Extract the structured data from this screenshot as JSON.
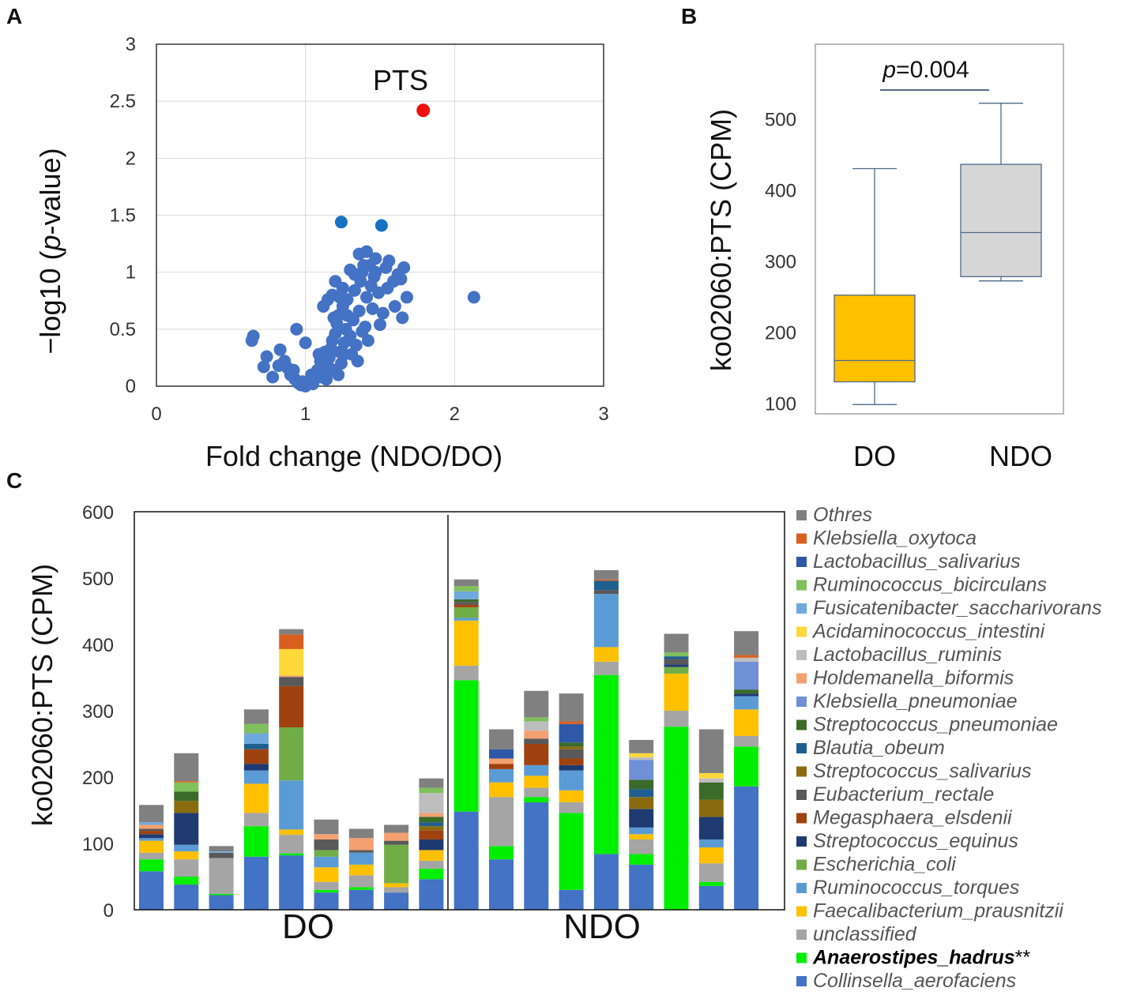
{
  "panels": {
    "a": "A",
    "b": "B",
    "c": "C"
  },
  "chart_data": [
    {
      "type": "scatter",
      "panel": "A",
      "xlabel": "Fold change (NDO/DO)",
      "ylabel_parts": [
        "−log10 (",
        "p",
        "-value)"
      ],
      "xlim": [
        0,
        3
      ],
      "ylim": [
        0,
        3
      ],
      "xticks": [
        "0",
        "1",
        "2",
        "3"
      ],
      "yticks": [
        "0",
        "0.5",
        "1",
        "1.5",
        "2",
        "2.5",
        "3"
      ],
      "grid": true,
      "annotation": "PTS",
      "highlight_color": "#ee1111",
      "secondary_color": "#1672c2",
      "point_color": "#4472c4",
      "highlight": [
        {
          "x": 1.79,
          "y": 2.42
        }
      ],
      "secondary": [
        {
          "x": 1.24,
          "y": 1.44
        },
        {
          "x": 1.51,
          "y": 1.41
        }
      ],
      "points": [
        [
          0.65,
          0.44
        ],
        [
          0.64,
          0.4
        ],
        [
          0.72,
          0.17
        ],
        [
          0.74,
          0.26
        ],
        [
          0.83,
          0.32
        ],
        [
          0.82,
          0.18
        ],
        [
          0.86,
          0.22
        ],
        [
          0.88,
          0.16
        ],
        [
          0.9,
          0.1
        ],
        [
          0.93,
          0.06
        ],
        [
          0.95,
          0.03
        ],
        [
          0.97,
          0.01
        ],
        [
          0.98,
          0.04
        ],
        [
          1.0,
          0.0
        ],
        [
          1.02,
          0.03
        ],
        [
          1.05,
          0.02
        ],
        [
          1.07,
          0.08
        ],
        [
          1.08,
          0.14
        ],
        [
          1.1,
          0.22
        ],
        [
          1.1,
          0.08
        ],
        [
          1.12,
          0.12
        ],
        [
          1.13,
          0.3
        ],
        [
          1.15,
          0.18
        ],
        [
          1.16,
          0.25
        ],
        [
          1.17,
          0.33
        ],
        [
          1.18,
          0.4
        ],
        [
          1.19,
          0.14
        ],
        [
          1.2,
          0.46
        ],
        [
          1.21,
          0.55
        ],
        [
          1.22,
          0.62
        ],
        [
          1.23,
          0.3
        ],
        [
          1.24,
          0.2
        ],
        [
          1.25,
          0.7
        ],
        [
          1.26,
          0.38
        ],
        [
          1.27,
          0.5
        ],
        [
          1.28,
          0.76
        ],
        [
          1.3,
          0.44
        ],
        [
          1.31,
          0.28
        ],
        [
          1.32,
          0.58
        ],
        [
          1.33,
          0.84
        ],
        [
          1.34,
          0.36
        ],
        [
          1.35,
          0.22
        ],
        [
          1.36,
          0.66
        ],
        [
          1.37,
          0.92
        ],
        [
          1.38,
          1.0
        ],
        [
          1.39,
          1.06
        ],
        [
          1.4,
          0.52
        ],
        [
          1.41,
          0.78
        ],
        [
          1.42,
          0.4
        ],
        [
          1.44,
          0.88
        ],
        [
          1.46,
          0.96
        ],
        [
          1.47,
          1.12
        ],
        [
          1.49,
          0.82
        ],
        [
          1.5,
          0.54
        ],
        [
          1.52,
          0.64
        ],
        [
          1.54,
          1.04
        ],
        [
          1.56,
          1.1
        ],
        [
          1.59,
          0.92
        ],
        [
          1.6,
          0.7
        ],
        [
          1.62,
          0.98
        ],
        [
          1.64,
          0.94
        ],
        [
          1.66,
          1.04
        ],
        [
          1.68,
          0.78
        ],
        [
          1.15,
          0.76
        ],
        [
          1.18,
          0.8
        ],
        [
          1.23,
          0.78
        ],
        [
          1.12,
          0.7
        ],
        [
          1.28,
          0.62
        ],
        [
          1.2,
          0.92
        ],
        [
          1.25,
          0.86
        ],
        [
          1.36,
          1.16
        ],
        [
          1.41,
          1.18
        ],
        [
          1.3,
          1.02
        ],
        [
          1.33,
          0.98
        ],
        [
          1.43,
          1.06
        ],
        [
          1.47,
          1.0
        ],
        [
          1.26,
          0.28
        ],
        [
          0.94,
          0.5
        ],
        [
          1.0,
          0.38
        ],
        [
          0.78,
          0.08
        ],
        [
          0.92,
          0.14
        ],
        [
          1.04,
          0.1
        ],
        [
          1.14,
          0.06
        ],
        [
          1.09,
          0.28
        ],
        [
          1.22,
          0.1
        ],
        [
          1.19,
          0.6
        ],
        [
          1.38,
          0.48
        ],
        [
          1.45,
          0.68
        ],
        [
          1.55,
          0.86
        ],
        [
          1.65,
          0.6
        ],
        [
          2.13,
          0.78
        ]
      ]
    },
    {
      "type": "box",
      "panel": "B",
      "categories": [
        "DO",
        "NDO"
      ],
      "ylabel": "ko02060:PTS (CPM)",
      "ylim": [
        85,
        605
      ],
      "yticks": [
        "100",
        "200",
        "300",
        "400",
        "500"
      ],
      "pvalue_parts": [
        "p",
        "=0.004"
      ],
      "boxes": [
        {
          "name": "DO",
          "min": 98,
          "q1": 130,
          "median": 160,
          "q3": 252,
          "max": 430,
          "color": "#ffc000"
        },
        {
          "name": "NDO",
          "min": 272,
          "q1": 278,
          "median": 340,
          "q3": 436,
          "max": 522,
          "color": "#d6d6d6"
        }
      ]
    },
    {
      "type": "bar",
      "stacked": true,
      "panel": "C",
      "ylabel": "ko02060:PTS (CPM)",
      "ylim": [
        0,
        600
      ],
      "yticks": [
        "0",
        "100",
        "200",
        "300",
        "400",
        "500",
        "600"
      ],
      "groups": [
        "DO",
        "NDO"
      ],
      "legend": [
        {
          "name": "Othres",
          "color": "#808080"
        },
        {
          "name": "Klebsiella_oxytoca",
          "color": "#d95f1e"
        },
        {
          "name": "Lactobacillus_salivarius",
          "color": "#2f58a8"
        },
        {
          "name": "Ruminococcus_bicirculans",
          "color": "#7fbf5c"
        },
        {
          "name": "Fusicatenibacter_saccharivorans",
          "color": "#6fa8dc"
        },
        {
          "name": "Acidaminococcus_intestini",
          "color": "#ffd83a"
        },
        {
          "name": "Lactobacillus_ruminis",
          "color": "#bdbdbd"
        },
        {
          "name": "Holdemanella_biformis",
          "color": "#f4a070"
        },
        {
          "name": "Klebsiella_pneumoniae",
          "color": "#6f8fd6"
        },
        {
          "name": "Streptococcus_pneumoniae",
          "color": "#3a6b29"
        },
        {
          "name": "Blautia_obeum",
          "color": "#1f5f8f"
        },
        {
          "name": "Streptococcus_salivarius",
          "color": "#8a6b0f"
        },
        {
          "name": "Eubacterium_rectale",
          "color": "#595959"
        },
        {
          "name": "Megasphaera_elsdenii",
          "color": "#a0420f"
        },
        {
          "name": "Streptococcus_equinus",
          "color": "#1f3a70"
        },
        {
          "name": "Escherichia_coli",
          "color": "#70ad47"
        },
        {
          "name": "Ruminococcus_torques",
          "color": "#5b9bd5"
        },
        {
          "name": "Faecalibacterium_prausnitzii",
          "color": "#ffc000"
        },
        {
          "name": "unclassified",
          "color": "#a5a5a5"
        },
        {
          "name": "Anaerostipes_hadrus",
          "suffix": "**",
          "color": "#00ee00",
          "bold": true
        },
        {
          "name": "Collinsella_aerofaciens",
          "color": "#4472c4"
        }
      ],
      "bars": [
        {
          "group": "DO",
          "segments": {
            "Collinsella_aerofaciens": 58,
            "Anaerostipes_hadrus": 18,
            "unclassified": 10,
            "Faecalibacterium_prausnitzii": 18,
            "Ruminococcus_torques": 4,
            "Streptococcus_equinus": 6,
            "Megasphaera_elsdenii": 5,
            "Eubacterium_rectale": 3,
            "Holdemanella_biformis": 6,
            "Fusicatenibacter_saccharivorans": 4,
            "Othres": 26
          }
        },
        {
          "group": "DO",
          "segments": {
            "Collinsella_aerofaciens": 38,
            "Anaerostipes_hadrus": 12,
            "unclassified": 26,
            "Faecalibacterium_prausnitzii": 12,
            "Ruminococcus_torques": 10,
            "Streptococcus_equinus": 48,
            "Streptococcus_salivarius": 18,
            "Streptococcus_pneumoniae": 14,
            "Ruminococcus_bicirculans": 14,
            "Klebsiella_oxytoca": 2,
            "Othres": 42
          }
        },
        {
          "group": "DO",
          "segments": {
            "Collinsella_aerofaciens": 22,
            "Anaerostipes_hadrus": 2,
            "unclassified": 54,
            "Eubacterium_rectale": 8,
            "Fusicatenibacter_saccharivorans": 2,
            "Othres": 8
          }
        },
        {
          "group": "DO",
          "segments": {
            "Collinsella_aerofaciens": 80,
            "Anaerostipes_hadrus": 46,
            "unclassified": 20,
            "Faecalibacterium_prausnitzii": 44,
            "Ruminococcus_torques": 20,
            "Megasphaera_elsdenii": 22,
            "Streptococcus_equinus": 10,
            "Blautia_obeum": 8,
            "Fusicatenibacter_saccharivorans": 16,
            "Ruminococcus_bicirculans": 14,
            "Othres": 22
          }
        },
        {
          "group": "DO",
          "segments": {
            "Collinsella_aerofaciens": 82,
            "Anaerostipes_hadrus": 3,
            "unclassified": 28,
            "Faecalibacterium_prausnitzii": 8,
            "Ruminococcus_torques": 74,
            "Escherichia_coli": 80,
            "Megasphaera_elsdenii": 62,
            "Eubacterium_rectale": 14,
            "Holdemanella_biformis": 2,
            "Acidaminococcus_intestini": 40,
            "Klebsiella_oxytoca": 22,
            "Othres": 8
          }
        },
        {
          "group": "DO",
          "segments": {
            "Collinsella_aerofaciens": 26,
            "Anaerostipes_hadrus": 4,
            "unclassified": 12,
            "Faecalibacterium_prausnitzii": 22,
            "Ruminococcus_torques": 16,
            "Escherichia_coli": 10,
            "Eubacterium_rectale": 16,
            "Holdemanella_biformis": 8,
            "Othres": 22
          }
        },
        {
          "group": "DO",
          "segments": {
            "Collinsella_aerofaciens": 30,
            "Anaerostipes_hadrus": 4,
            "unclassified": 18,
            "Faecalibacterium_prausnitzii": 16,
            "Ruminococcus_torques": 18,
            "Eubacterium_rectale": 4,
            "Holdemanella_biformis": 18,
            "Othres": 14
          }
        },
        {
          "group": "DO",
          "segments": {
            "Collinsella_aerofaciens": 26,
            "unclassified": 8,
            "Faecalibacterium_prausnitzii": 6,
            "Escherichia_coli": 58,
            "Eubacterium_rectale": 6,
            "Holdemanella_biformis": 12,
            "Othres": 12
          }
        },
        {
          "group": "DO",
          "segments": {
            "Collinsella_aerofaciens": 46,
            "Anaerostipes_hadrus": 16,
            "unclassified": 12,
            "Faecalibacterium_prausnitzii": 16,
            "Streptococcus_equinus": 16,
            "Megasphaera_elsdenii": 14,
            "Streptococcus_salivarius": 6,
            "Blautia_obeum": 6,
            "Streptococcus_pneumoniae": 8,
            "Holdemanella_biformis": 6,
            "Lactobacillus_ruminis": 30,
            "Ruminococcus_bicirculans": 8,
            "Othres": 14
          }
        },
        {
          "group": "NDO",
          "segments": {
            "Collinsella_aerofaciens": 148,
            "Anaerostipes_hadrus": 198,
            "unclassified": 22,
            "Faecalibacterium_prausnitzii": 68,
            "Ruminococcus_torques": 4,
            "Megasphaera_elsdenii": 4,
            "Eubacterium_rectale": 4,
            "Streptococcus_pneumoniae": 4,
            "Escherichia_coli": 16,
            "Ruminococcus_bicirculans": 8,
            "Fusicatenibacter_saccharivorans": 12,
            "Othres": 10
          }
        },
        {
          "group": "NDO",
          "segments": {
            "Collinsella_aerofaciens": 76,
            "Anaerostipes_hadrus": 20,
            "unclassified": 74,
            "Faecalibacterium_prausnitzii": 22,
            "Ruminococcus_torques": 20,
            "Megasphaera_elsdenii": 8,
            "Holdemanella_biformis": 8,
            "Lactobacillus_salivarius": 14,
            "Othres": 30
          }
        },
        {
          "group": "NDO",
          "segments": {
            "Collinsella_aerofaciens": 162,
            "Anaerostipes_hadrus": 8,
            "unclassified": 14,
            "Faecalibacterium_prausnitzii": 18,
            "Ruminococcus_torques": 16,
            "Megasphaera_elsdenii": 32,
            "Eubacterium_rectale": 8,
            "Holdemanella_biformis": 12,
            "Lactobacillus_ruminis": 14,
            "Ruminococcus_bicirculans": 6,
            "Othres": 40
          }
        },
        {
          "group": "NDO",
          "segments": {
            "Collinsella_aerofaciens": 30,
            "Anaerostipes_hadrus": 116,
            "unclassified": 16,
            "Faecalibacterium_prausnitzii": 18,
            "Ruminococcus_torques": 30,
            "Streptococcus_equinus": 8,
            "Eubacterium_rectale": 14,
            "Megasphaera_elsdenii": 10,
            "Streptococcus_pneumoniae": 6,
            "Streptococcus_salivarius": 4,
            "Lactobacillus_salivarius": 28,
            "Klebsiella_oxytoca": 4,
            "Othres": 42
          }
        },
        {
          "group": "NDO",
          "segments": {
            "Collinsella_aerofaciens": 84,
            "Anaerostipes_hadrus": 270,
            "unclassified": 20,
            "Faecalibacterium_prausnitzii": 22,
            "Ruminococcus_torques": 80,
            "Blautia_obeum": 14,
            "Eubacterium_rectale": 6,
            "Klebsiella_oxytoca": 2,
            "Othres": 14
          }
        },
        {
          "group": "NDO",
          "segments": {
            "Collinsella_aerofaciens": 68,
            "Anaerostipes_hadrus": 16,
            "unclassified": 22,
            "Faecalibacterium_prausnitzii": 8,
            "Ruminococcus_torques": 10,
            "Streptococcus_equinus": 28,
            "Streptococcus_salivarius": 18,
            "Blautia_obeum": 12,
            "Streptococcus_pneumoniae": 14,
            "Klebsiella_pneumoniae": 30,
            "Acidaminococcus_intestini": 6,
            "Lactobacillus_ruminis": 4,
            "Othres": 20
          }
        },
        {
          "group": "NDO",
          "segments": {
            "Anaerostipes_hadrus": 276,
            "unclassified": 24,
            "Faecalibacterium_prausnitzii": 56,
            "Escherichia_coli": 10,
            "Ruminococcus_bicirculans": 6,
            "Eubacterium_rectale": 8,
            "Blautia_obeum": 4,
            "Streptococcus_equinus": 4,
            "Othres": 28
          }
        },
        {
          "group": "NDO",
          "segments": {
            "Collinsella_aerofaciens": 36,
            "Anaerostipes_hadrus": 6,
            "unclassified": 28,
            "Faecalibacterium_prausnitzii": 24,
            "Ruminococcus_torques": 12,
            "Streptococcus_equinus": 34,
            "Streptococcus_salivarius": 26,
            "Streptococcus_pneumoniae": 26,
            "Acidaminococcus_intestini": 8,
            "Lactobacillus_ruminis": 6,
            "Othres": 66
          }
        },
        {
          "group": "NDO",
          "segments": {
            "Collinsella_aerofaciens": 186,
            "Anaerostipes_hadrus": 60,
            "unclassified": 16,
            "Faecalibacterium_prausnitzii": 40,
            "Ruminococcus_torques": 20,
            "Streptococcus_equinus": 4,
            "Streptococcus_pneumoniae": 6,
            "Klebsiella_pneumoniae": 42,
            "Lactobacillus_ruminis": 6,
            "Klebsiella_oxytoca": 4,
            "Othres": 36
          }
        }
      ]
    }
  ]
}
